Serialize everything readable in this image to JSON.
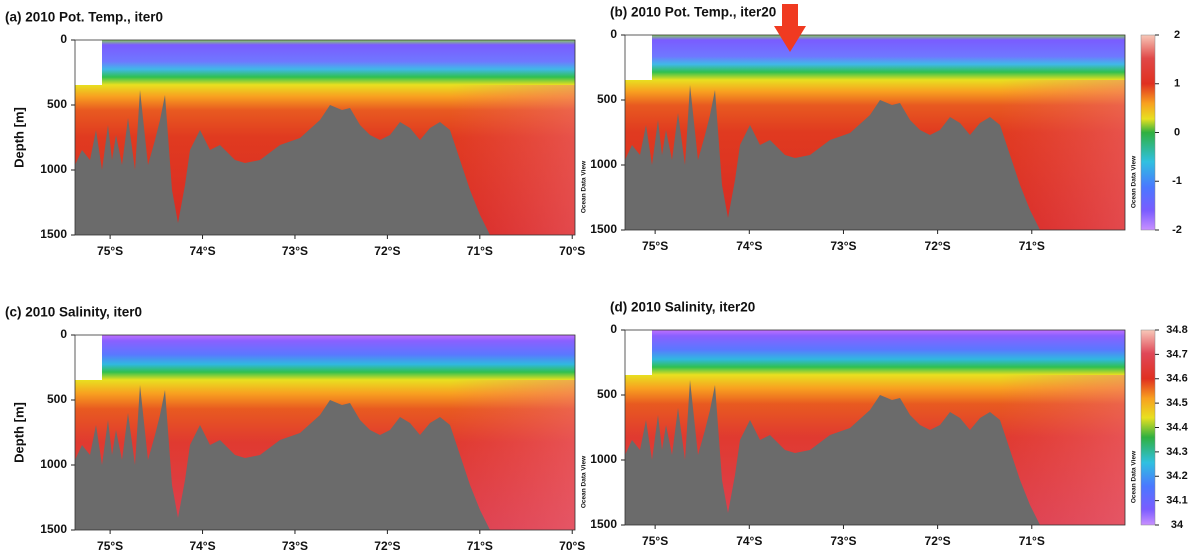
{
  "chart_data": [
    {
      "type": "section",
      "title": "(a)  2010 Pot. Temp., iter0",
      "ylabel": "Depth [m]",
      "ylim": [
        0,
        1500
      ],
      "yticks": [
        0,
        500,
        1000,
        1500
      ],
      "xlim": [
        -75.38,
        -69.97
      ],
      "xticks": [
        {
          "value": -75,
          "label": "75°S"
        },
        {
          "value": -74,
          "label": "74°S"
        },
        {
          "value": -73,
          "label": "73°S"
        },
        {
          "value": -72,
          "label": "72°S"
        },
        {
          "value": -71,
          "label": "71°S"
        },
        {
          "value": -70,
          "label": "70°S"
        }
      ],
      "watermark": "Ocean Data View",
      "variable": "temperature"
    },
    {
      "type": "section",
      "title": "(b)  2010 Pot. Temp., iter20",
      "ylim": [
        0,
        1500
      ],
      "yticks": [
        0,
        500,
        1000,
        1500
      ],
      "xlim": [
        -75.32,
        -70.01
      ],
      "xticks": [
        {
          "value": -75,
          "label": "75°S"
        },
        {
          "value": -74,
          "label": "74°S"
        },
        {
          "value": -73,
          "label": "73°S"
        },
        {
          "value": -72,
          "label": "72°S"
        },
        {
          "value": -71,
          "label": "71°S"
        }
      ],
      "watermark": "Ocean Data View",
      "variable": "temperature",
      "colorbar": {
        "lim": [
          -2,
          2
        ],
        "ticks": [
          2,
          1,
          0,
          -1,
          -2
        ]
      }
    },
    {
      "type": "section",
      "title": "(c)  2010 Salinity, iter0",
      "ylabel": "Depth [m]",
      "ylim": [
        0,
        1500
      ],
      "yticks": [
        0,
        500,
        1000,
        1500
      ],
      "xlim": [
        -75.38,
        -69.97
      ],
      "xticks": [
        {
          "value": -75,
          "label": "75°S"
        },
        {
          "value": -74,
          "label": "74°S"
        },
        {
          "value": -73,
          "label": "73°S"
        },
        {
          "value": -72,
          "label": "72°S"
        },
        {
          "value": -71,
          "label": "71°S"
        },
        {
          "value": -70,
          "label": "70°S"
        }
      ],
      "watermark": "Ocean Data View",
      "variable": "salinity"
    },
    {
      "type": "section",
      "title": "(d)  2010 Salinity, iter20",
      "ylim": [
        0,
        1500
      ],
      "yticks": [
        0,
        500,
        1000,
        1500
      ],
      "xlim": [
        -75.32,
        -70.01
      ],
      "xticks": [
        {
          "value": -75,
          "label": "75°S"
        },
        {
          "value": -74,
          "label": "74°S"
        },
        {
          "value": -73,
          "label": "73°S"
        },
        {
          "value": -72,
          "label": "72°S"
        },
        {
          "value": -71,
          "label": "71°S"
        }
      ],
      "watermark": "Ocean Data View",
      "variable": "salinity",
      "colorbar": {
        "lim": [
          34,
          34.8
        ],
        "ticks": [
          34.8,
          34.7,
          34.6,
          34.5,
          34.4,
          34.3,
          34.2,
          34.1,
          34
        ]
      }
    }
  ]
}
